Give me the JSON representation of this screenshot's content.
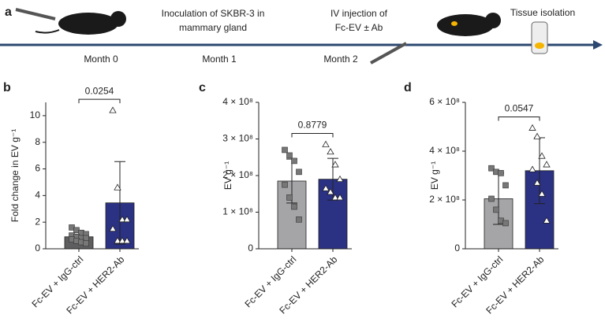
{
  "timeline": {
    "panel": "a",
    "steps": [
      {
        "text": [
          "Inoculation of SKBR-3 in",
          "mammary gland"
        ]
      },
      {
        "text": [
          "IV injection of",
          "Fc-EV ± Ab"
        ]
      },
      {
        "text": [
          "Tissue isolation"
        ]
      }
    ],
    "months": [
      "Month 0",
      "Month 1",
      "Month 2"
    ]
  },
  "chart_data": [
    {
      "type": "bar",
      "panel": "b",
      "ylabel": "Fold change in EV g⁻¹",
      "categories": [
        "Fc-EV + IgG-ctrl",
        "Fc-EV + HER2-Ab"
      ],
      "values": [
        0.9,
        3.45
      ],
      "errors": [
        0.4,
        3.1
      ],
      "colors": [
        "#5e5e60",
        "#2b3183"
      ],
      "points": [
        [
          1.6,
          1.4,
          1.2,
          1.1,
          1.0,
          0.9,
          0.8,
          0.8,
          0.7,
          0.6,
          0.5,
          0.4
        ],
        [
          10.4,
          4.6,
          2.2,
          2.2,
          1.5,
          0.6,
          0.6,
          0.6
        ]
      ],
      "ylim": [
        0,
        11
      ],
      "yticks": [
        0,
        2,
        4,
        6,
        8,
        10
      ],
      "annotation": "0.0254"
    },
    {
      "type": "bar",
      "panel": "c",
      "ylabel": "EV g⁻¹",
      "categories": [
        "Fc-EV + IgG-ctrl",
        "Fc-EV + HER2-Ab"
      ],
      "values": [
        185000000,
        190000000
      ],
      "errors": [
        60000000,
        57000000
      ],
      "colors": [
        "#a5a5a8",
        "#2b3183"
      ],
      "points": [
        [
          270000000,
          255000000,
          240000000,
          210000000,
          175000000,
          140000000,
          115000000,
          80000000
        ],
        [
          285000000,
          265000000,
          230000000,
          190000000,
          165000000,
          155000000,
          140000000,
          140000000
        ]
      ],
      "ylim": [
        0,
        400000000
      ],
      "yticks": [
        0,
        {
          "value": 100000000,
          "label": "1 × 10⁸"
        },
        {
          "value": 200000000,
          "label": "2 × 10⁸"
        },
        {
          "value": 300000000,
          "label": "3 × 10⁸"
        },
        {
          "value": 400000000,
          "label": "4 × 10⁸"
        }
      ],
      "annotation": "0.8779"
    },
    {
      "type": "bar",
      "panel": "d",
      "ylabel": "EV g⁻¹",
      "categories": [
        "Fc-EV + IgG-ctrl",
        "Fc-EV + HER2-Ab"
      ],
      "values": [
        205000000,
        320000000
      ],
      "errors": [
        105000000,
        135000000
      ],
      "colors": [
        "#a5a5a8",
        "#2b3183"
      ],
      "points": [
        [
          330000000,
          315000000,
          310000000,
          260000000,
          205000000,
          160000000,
          115000000,
          105000000
        ],
        [
          495000000,
          460000000,
          380000000,
          345000000,
          325000000,
          270000000,
          225000000,
          115000000
        ]
      ],
      "ylim": [
        0,
        600000000
      ],
      "yticks": [
        0,
        {
          "value": 200000000,
          "label": "2 × 10⁸"
        },
        {
          "value": 400000000,
          "label": "4 × 10⁸"
        },
        {
          "value": 600000000,
          "label": "6 × 10⁸"
        }
      ],
      "annotation": "0.0547"
    }
  ]
}
